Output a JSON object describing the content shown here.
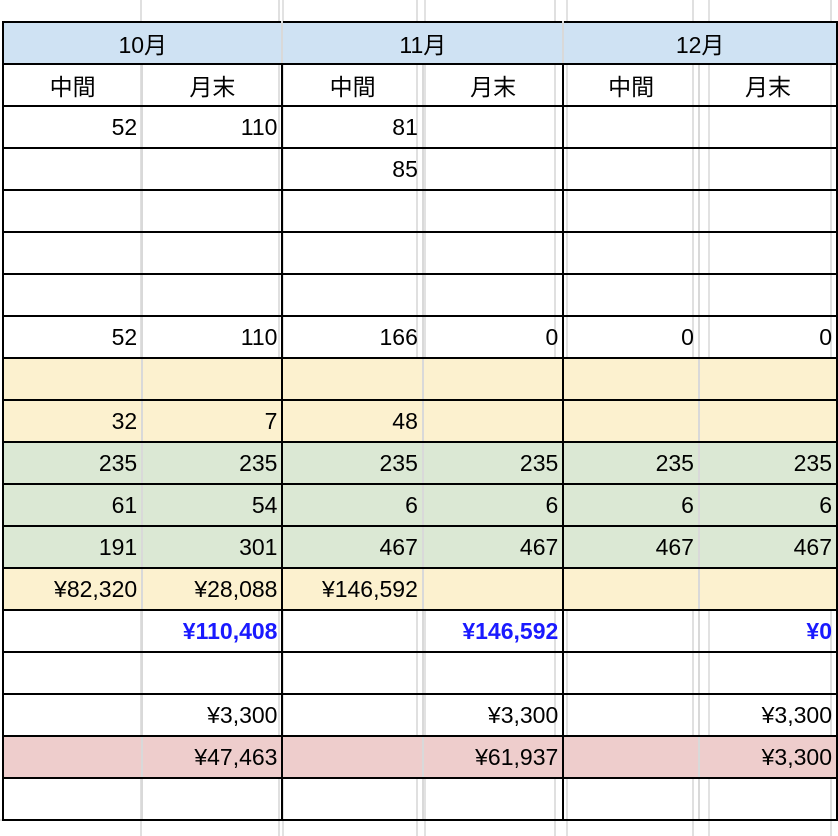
{
  "months": [
    "10月",
    "11月",
    "12月"
  ],
  "subheaders": [
    "中間",
    "月末",
    "中間",
    "月末",
    "中間",
    "月末"
  ],
  "colors": {
    "header_bg": "#cfe2f3",
    "yellow": "#fcf1cf",
    "green": "#dbe8d4",
    "pink": "#eecdcc",
    "blue_text": "#1a1aff"
  },
  "rows": [
    {
      "style": "white",
      "cells": [
        "52",
        "110",
        "81",
        "",
        "",
        ""
      ]
    },
    {
      "style": "white",
      "cells": [
        "",
        "",
        "85",
        "",
        "",
        ""
      ]
    },
    {
      "style": "white",
      "cells": [
        "",
        "",
        "",
        "",
        "",
        ""
      ]
    },
    {
      "style": "white",
      "cells": [
        "",
        "",
        "",
        "",
        "",
        ""
      ]
    },
    {
      "style": "white",
      "cells": [
        "",
        "",
        "",
        "",
        "",
        ""
      ]
    },
    {
      "style": "white",
      "cells": [
        "52",
        "110",
        "166",
        "0",
        "0",
        "0"
      ]
    },
    {
      "style": "yellow",
      "cells": [
        "",
        "",
        "",
        "",
        "",
        ""
      ]
    },
    {
      "style": "yellow",
      "cells": [
        "32",
        "7",
        "48",
        "",
        "",
        ""
      ]
    },
    {
      "style": "green",
      "cells": [
        "235",
        "235",
        "235",
        "235",
        "235",
        "235"
      ]
    },
    {
      "style": "green",
      "cells": [
        "61",
        "54",
        "6",
        "6",
        "6",
        "6"
      ]
    },
    {
      "style": "green",
      "cells": [
        "191",
        "301",
        "467",
        "467",
        "467",
        "467"
      ]
    },
    {
      "style": "yellow",
      "cells": [
        "¥82,320",
        "¥28,088",
        "¥146,592",
        "",
        "",
        ""
      ]
    },
    {
      "style": "blue",
      "cells": [
        "",
        "¥110,408",
        "",
        "¥146,592",
        "",
        "¥0"
      ]
    },
    {
      "style": "white",
      "cells": [
        "",
        "",
        "",
        "",
        "",
        ""
      ]
    },
    {
      "style": "white",
      "cells": [
        "",
        "¥3,300",
        "",
        "¥3,300",
        "",
        "¥3,300"
      ]
    },
    {
      "style": "pink",
      "cells": [
        "",
        "¥47,463",
        "",
        "¥61,937",
        "",
        "¥3,300"
      ]
    },
    {
      "style": "white",
      "cells": [
        "",
        "",
        "",
        "",
        "",
        ""
      ]
    }
  ]
}
